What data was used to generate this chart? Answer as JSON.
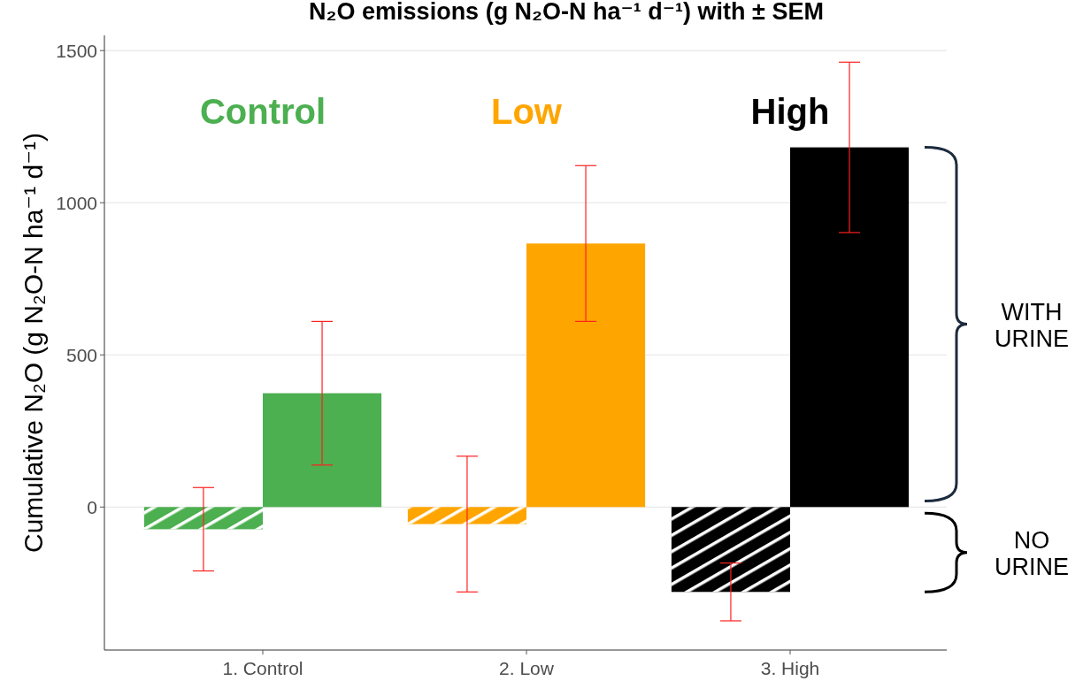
{
  "chart_data": {
    "type": "bar",
    "title": "N₂O emissions (g N₂O-N ha⁻¹ d⁻¹) with ± SEM",
    "ylabel": "Cumulative N₂O (g N₂O-N ha⁻¹ d⁻¹)",
    "categories": [
      "1. Control",
      "2. Low",
      "3. High"
    ],
    "series": [
      {
        "name": "NO URINE",
        "colors": [
          "#4caf50",
          "#ffa500",
          "#000000"
        ],
        "values": [
          -73,
          -56,
          -279
        ],
        "errors": [
          137,
          223,
          95
        ]
      },
      {
        "name": "WITH URINE",
        "colors": [
          "#4caf50",
          "#ffa500",
          "#000000"
        ],
        "values": [
          374,
          866,
          1182
        ],
        "errors": [
          236,
          256,
          280
        ]
      }
    ],
    "annotations": [
      "Control",
      "Low",
      "High"
    ],
    "ylim": [
      -470,
      1550
    ],
    "yticks": [
      0,
      500,
      1000,
      1500
    ],
    "grid": "y"
  }
}
